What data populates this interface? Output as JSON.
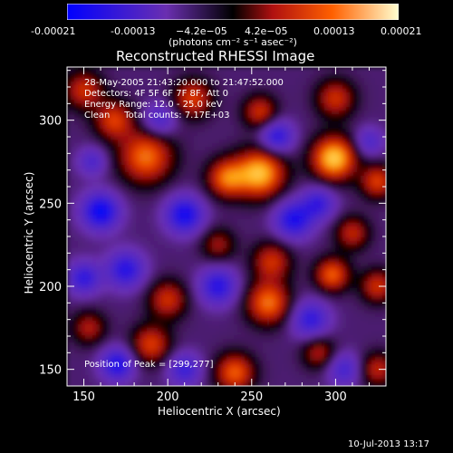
{
  "colorbar": {
    "tick_labels": [
      "-0.00021",
      "-0.00013",
      "−4.2e−05",
      "4.2e−05",
      "0.00013",
      "0.00021"
    ],
    "tick_values": [
      -0.00021,
      -0.00013,
      -4.2e-05,
      4.2e-05,
      0.00013,
      0.00021
    ],
    "unit_label": "(photons cm⁻² s⁻¹ asec⁻²)",
    "range": [
      -0.00021,
      0.00021
    ]
  },
  "title": "Reconstructed RHESSI Image",
  "annotations": {
    "time": "28-May-2005 21:43:20.000 to 21:47:52.000",
    "detectors": "Detectors: 4F 5F 6F 7F 8F, Att 0",
    "energy": "Energy Range: 12.0 - 25.0 keV",
    "clean": "Clean     Total counts: 7.17E+03",
    "peak": "Position of Peak = [299,277]"
  },
  "footer_date": "10-Jul-2013 13:17",
  "chart_data": {
    "type": "heatmap",
    "title": "Reconstructed RHESSI Image",
    "xlabel": "Heliocentric X (arcsec)",
    "ylabel": "Heliocentric Y (arcsec)",
    "xlim": [
      140,
      330
    ],
    "ylim": [
      140,
      332
    ],
    "x_ticks": [
      150,
      200,
      250,
      300
    ],
    "y_ticks": [
      150,
      200,
      250,
      300
    ],
    "peak_position": [
      299,
      277
    ],
    "colorscale": [
      "#0000ff",
      "#6a2fb0",
      "#000000",
      "#b01010",
      "#ff6000",
      "#ffff80"
    ],
    "blobs": [
      {
        "x": 299,
        "y": 277,
        "amp": 1.0,
        "sigma": 9
      },
      {
        "x": 255,
        "y": 268,
        "amp": 0.95,
        "sigma": 10
      },
      {
        "x": 235,
        "y": 265,
        "amp": 0.7,
        "sigma": 8
      },
      {
        "x": 187,
        "y": 278,
        "amp": 0.75,
        "sigma": 11
      },
      {
        "x": 168,
        "y": 300,
        "amp": 0.6,
        "sigma": 8
      },
      {
        "x": 150,
        "y": 318,
        "amp": 0.55,
        "sigma": 8
      },
      {
        "x": 215,
        "y": 313,
        "amp": 0.6,
        "sigma": 8
      },
      {
        "x": 255,
        "y": 305,
        "amp": 0.55,
        "sigma": 7
      },
      {
        "x": 300,
        "y": 313,
        "amp": 0.55,
        "sigma": 8
      },
      {
        "x": 325,
        "y": 263,
        "amp": 0.6,
        "sigma": 7
      },
      {
        "x": 310,
        "y": 232,
        "amp": 0.5,
        "sigma": 7
      },
      {
        "x": 298,
        "y": 207,
        "amp": 0.7,
        "sigma": 7
      },
      {
        "x": 262,
        "y": 215,
        "amp": 0.55,
        "sigma": 8
      },
      {
        "x": 230,
        "y": 225,
        "amp": 0.4,
        "sigma": 7
      },
      {
        "x": 260,
        "y": 190,
        "amp": 0.75,
        "sigma": 9
      },
      {
        "x": 200,
        "y": 192,
        "amp": 0.55,
        "sigma": 8
      },
      {
        "x": 190,
        "y": 165,
        "amp": 0.6,
        "sigma": 8
      },
      {
        "x": 153,
        "y": 175,
        "amp": 0.45,
        "sigma": 7
      },
      {
        "x": 240,
        "y": 148,
        "amp": 0.7,
        "sigma": 8
      },
      {
        "x": 290,
        "y": 160,
        "amp": 0.45,
        "sigma": 7
      },
      {
        "x": 325,
        "y": 150,
        "amp": 0.5,
        "sigma": 7
      },
      {
        "x": 325,
        "y": 200,
        "amp": 0.55,
        "sigma": 7
      },
      {
        "x": 160,
        "y": 245,
        "amp": -0.75,
        "sigma": 8
      },
      {
        "x": 210,
        "y": 243,
        "amp": -0.7,
        "sigma": 8
      },
      {
        "x": 275,
        "y": 240,
        "amp": -0.65,
        "sigma": 8
      },
      {
        "x": 290,
        "y": 250,
        "amp": -0.5,
        "sigma": 7
      },
      {
        "x": 195,
        "y": 300,
        "amp": -0.45,
        "sigma": 7
      },
      {
        "x": 265,
        "y": 290,
        "amp": -0.6,
        "sigma": 7
      },
      {
        "x": 230,
        "y": 200,
        "amp": -0.6,
        "sigma": 8
      },
      {
        "x": 175,
        "y": 210,
        "amp": -0.6,
        "sigma": 8
      },
      {
        "x": 150,
        "y": 205,
        "amp": -0.55,
        "sigma": 7
      },
      {
        "x": 285,
        "y": 180,
        "amp": -0.55,
        "sigma": 8
      },
      {
        "x": 170,
        "y": 153,
        "amp": -0.65,
        "sigma": 7
      },
      {
        "x": 210,
        "y": 150,
        "amp": -0.5,
        "sigma": 7
      },
      {
        "x": 305,
        "y": 150,
        "amp": -0.45,
        "sigma": 7
      },
      {
        "x": 320,
        "y": 287,
        "amp": -0.4,
        "sigma": 6
      },
      {
        "x": 155,
        "y": 275,
        "amp": -0.4,
        "sigma": 6
      }
    ]
  }
}
